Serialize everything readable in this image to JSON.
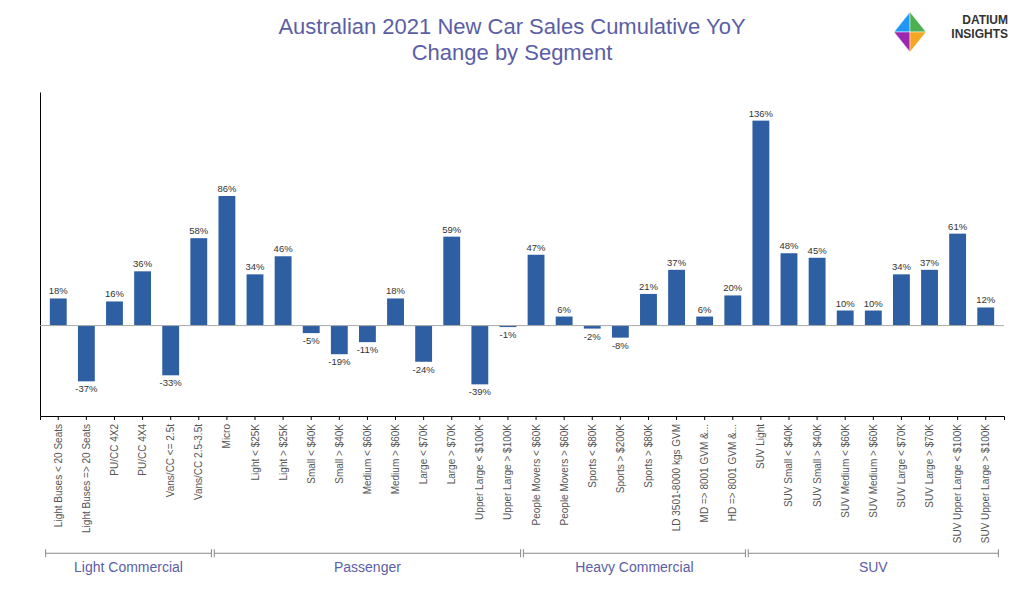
{
  "chart_data": {
    "type": "bar",
    "title": "Australian 2021 New Car Sales Cumulative YoY\nChange by Segment",
    "categories": [
      "Light Buses < 20 Seats",
      "Light Buses => 20 Seats",
      "PU/CC 4X2",
      "PU/CC 4X4",
      "Vans/CC <= 2.5t",
      "Vans/CC 2.5-3.5t",
      "Micro",
      "Light < $25K",
      "Light > $25K",
      "Small < $40K",
      "Small > $40K",
      "Medium < $60K",
      "Medium > $60K",
      "Large < $70K",
      "Large > $70K",
      "Upper Large < $100K",
      "Upper Large > $100K",
      "People Movers < $60K",
      "People Movers > $60K",
      "Sports < $80K",
      "Sports > $200K",
      "Sports > $80K",
      "LD 3501-8000 kgs GVM",
      "MD => 8001 GVM &...",
      "HD => 8001 GVM &...",
      "SUV Light",
      "SUV Small < $40K",
      "SUV Small > $40K",
      "SUV Medium < $60K",
      "SUV Medium > $60K",
      "SUV Large < $70K",
      "SUV Large > $70K",
      "SUV Upper Large < $100K",
      "SUV Upper Large > $100K"
    ],
    "values": [
      18,
      -37,
      16,
      36,
      -33,
      58,
      86,
      34,
      46,
      -5,
      -19,
      -11,
      18,
      -24,
      59,
      -39,
      -1,
      47,
      6,
      -2,
      -8,
      21,
      37,
      6,
      20,
      136,
      48,
      45,
      10,
      10,
      34,
      37,
      61,
      12
    ],
    "value_labels": [
      "18%",
      "-37%",
      "16%",
      "36%",
      "-33%",
      "58%",
      "86%",
      "34%",
      "46%",
      "-5%",
      "-19%",
      "-11%",
      "18%",
      "-24%",
      "59%",
      "-39%",
      "-1%",
      "47%",
      "6%",
      "-2%",
      "-8%",
      "21%",
      "37%",
      "6%",
      "20%",
      "136%",
      "48%",
      "45%",
      "10%",
      "10%",
      "34%",
      "37%",
      "61%",
      "12%"
    ],
    "data_labels": true,
    "color": "#2E5FA3",
    "ylim": [
      -60,
      155
    ],
    "grid": false,
    "tick_labels": "x",
    "groups": [
      {
        "name": "Light Commercial",
        "start": 0,
        "end": 5
      },
      {
        "name": "Passenger",
        "start": 6,
        "end": 16
      },
      {
        "name": "Heavy Commercial",
        "start": 17,
        "end": 24
      },
      {
        "name": "SUV",
        "start": 25,
        "end": 33
      }
    ],
    "annotations": [
      "DATIUM\nINSIGHTS"
    ]
  }
}
